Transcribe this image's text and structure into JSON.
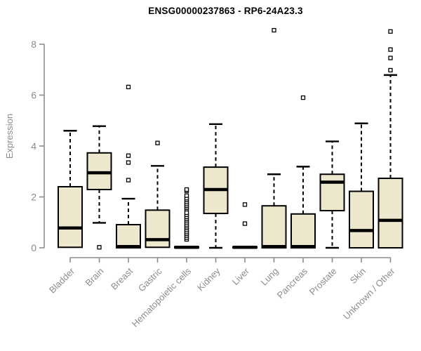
{
  "chart_data": {
    "type": "boxplot",
    "title": "ENSG00000237863 - RP6-24A23.3",
    "ylabel": "Expression",
    "xlabel": "",
    "ylim": [
      0,
      8.6
    ],
    "yticks": [
      0,
      2,
      4,
      6,
      8
    ],
    "grid": "off",
    "legend": "none",
    "box_fill_color": "#ece7cd",
    "box_stroke_color": "#000000",
    "axis_color": "#8c8c8c",
    "tick_label_color": "#8c8c8c",
    "categories": [
      "Bladder",
      "Brain",
      "Breast",
      "Gastric",
      "Hematopoietic cells",
      "Kidney",
      "Liver",
      "Lung",
      "Pancreas",
      "Prostate",
      "Skin",
      "Unknown / Other"
    ],
    "boxes": [
      {
        "name": "Bladder",
        "low": 0,
        "q1": 0.02,
        "median": 0.78,
        "q3": 2.4,
        "high": 4.6,
        "outliers": []
      },
      {
        "name": "Brain",
        "low": 0.98,
        "q1": 2.29,
        "median": 2.95,
        "q3": 3.73,
        "high": 4.78,
        "outliers": [
          0.02
        ]
      },
      {
        "name": "Breast",
        "low": 0,
        "q1": 0,
        "median": 0.05,
        "q3": 0.91,
        "high": 1.93,
        "outliers": [
          2.66,
          3.35,
          3.62,
          6.32
        ]
      },
      {
        "name": "Gastric",
        "low": 0,
        "q1": 0.02,
        "median": 0.32,
        "q3": 1.48,
        "high": 3.22,
        "outliers": [
          4.12
        ]
      },
      {
        "name": "Hematopoietic cells",
        "low": 0,
        "q1": 0,
        "median": 0.02,
        "q3": 0.04,
        "high": 0.06,
        "outliers": [
          0.33,
          0.4,
          0.48,
          0.55,
          0.62,
          0.7,
          0.78,
          0.85,
          0.92,
          1.0,
          1.08,
          1.15,
          1.22,
          1.3,
          1.38,
          1.52,
          1.58,
          1.65,
          1.72,
          1.8,
          1.88,
          1.95,
          2.05,
          2.24,
          2.29
        ]
      },
      {
        "name": "Kidney",
        "low": 0,
        "q1": 1.35,
        "median": 2.29,
        "q3": 3.17,
        "high": 4.86,
        "outliers": []
      },
      {
        "name": "Liver",
        "low": 0,
        "q1": 0,
        "median": 0.02,
        "q3": 0.04,
        "high": 0.06,
        "outliers": [
          0.95,
          1.7
        ]
      },
      {
        "name": "Lung",
        "low": 0,
        "q1": 0,
        "median": 0.05,
        "q3": 1.65,
        "high": 2.89,
        "outliers": [
          8.55
        ]
      },
      {
        "name": "Pancreas",
        "low": 0,
        "q1": 0,
        "median": 0.05,
        "q3": 1.33,
        "high": 3.19,
        "outliers": [
          5.9
        ]
      },
      {
        "name": "Prostate",
        "low": 0,
        "q1": 1.46,
        "median": 2.58,
        "q3": 2.89,
        "high": 4.18,
        "outliers": []
      },
      {
        "name": "Skin",
        "low": 0,
        "q1": 0,
        "median": 0.68,
        "q3": 2.22,
        "high": 4.89,
        "outliers": []
      },
      {
        "name": "Unknown / Other",
        "low": 0,
        "q1": 0,
        "median": 1.08,
        "q3": 2.73,
        "high": 6.79,
        "outliers": [
          6.98,
          7.46,
          7.79,
          8.5
        ]
      }
    ]
  }
}
